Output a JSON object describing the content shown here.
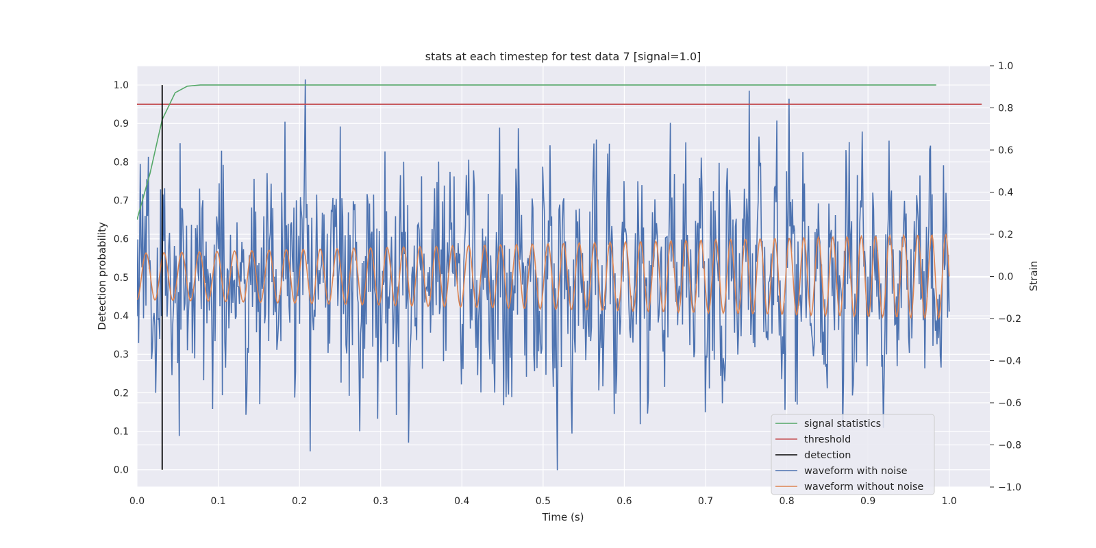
{
  "chart_data": {
    "type": "line",
    "title": "stats at each timestep for test data 7 [signal=1.0]",
    "xlabel": "Time (s)",
    "ylabel_left": "Detection probability",
    "ylabel_right": "Strain",
    "xlim": [
      0.0,
      1.05
    ],
    "ylim_left": [
      -0.045,
      1.05
    ],
    "ylim_right": [
      -1.0,
      1.0
    ],
    "x_ticks": [
      0.0,
      0.1,
      0.2,
      0.3,
      0.4,
      0.5,
      0.6,
      0.7,
      0.8,
      0.9,
      1.0
    ],
    "x_tick_labels": [
      "0.0",
      "0.1",
      "0.2",
      "0.3",
      "0.4",
      "0.5",
      "0.6",
      "0.7",
      "0.8",
      "0.9",
      "1.0"
    ],
    "y_left_ticks": [
      0.0,
      0.1,
      0.2,
      0.3,
      0.4,
      0.5,
      0.6,
      0.7,
      0.8,
      0.9,
      1.0
    ],
    "y_left_tick_labels": [
      "0.0",
      "0.1",
      "0.2",
      "0.3",
      "0.4",
      "0.5",
      "0.6",
      "0.7",
      "0.8",
      "0.9",
      "1.0"
    ],
    "y_right_ticks": [
      -1.0,
      -0.8,
      -0.6,
      -0.4,
      -0.2,
      0.0,
      0.2,
      0.4,
      0.6,
      0.8,
      1.0
    ],
    "y_right_tick_labels": [
      "−1.0",
      "−0.8",
      "−0.6",
      "−0.4",
      "−0.2",
      "0.0",
      "0.2",
      "0.4",
      "0.6",
      "0.8",
      "1.0"
    ],
    "grid": true,
    "legend_position": "lower-right",
    "colors": {
      "signal_statistics": "#55a868",
      "threshold": "#c44e52",
      "detection": "#000000",
      "waveform_with_noise": "#4c72b0",
      "waveform_without_noise": "#dd8452",
      "plot_background": "#eaeaf2",
      "grid": "#ffffff"
    },
    "series": [
      {
        "name": "signal statistics",
        "axis": "left",
        "x": [
          0.0,
          0.016,
          0.031,
          0.047,
          0.062,
          0.078,
          0.094,
          0.2,
          0.4,
          0.6,
          0.8,
          0.984
        ],
        "y": [
          0.65,
          0.77,
          0.91,
          0.98,
          0.997,
          1.0,
          1.0,
          1.0,
          1.0,
          1.0,
          1.0,
          1.0
        ]
      },
      {
        "name": "threshold",
        "axis": "left",
        "x": [
          0.0,
          1.04
        ],
        "y": [
          0.95,
          0.95
        ]
      },
      {
        "name": "detection",
        "axis": "left",
        "x": [
          0.031,
          0.031
        ],
        "y": [
          0.0,
          1.0
        ]
      },
      {
        "name": "waveform with noise",
        "axis": "right",
        "x_range": [
          0.0,
          1.0
        ],
        "points": 1000,
        "noise_std": 0.3,
        "y_min": -0.92,
        "y_max": 1.0
      },
      {
        "name": "waveform without noise",
        "axis": "right",
        "x_range": [
          0.0,
          1.0
        ],
        "points": 1000,
        "amplitude_start": 0.11,
        "amplitude_end": 0.2,
        "cycles": 45
      }
    ],
    "legend": [
      "signal statistics",
      "threshold",
      "detection",
      "waveform with noise",
      "waveform without noise"
    ]
  }
}
